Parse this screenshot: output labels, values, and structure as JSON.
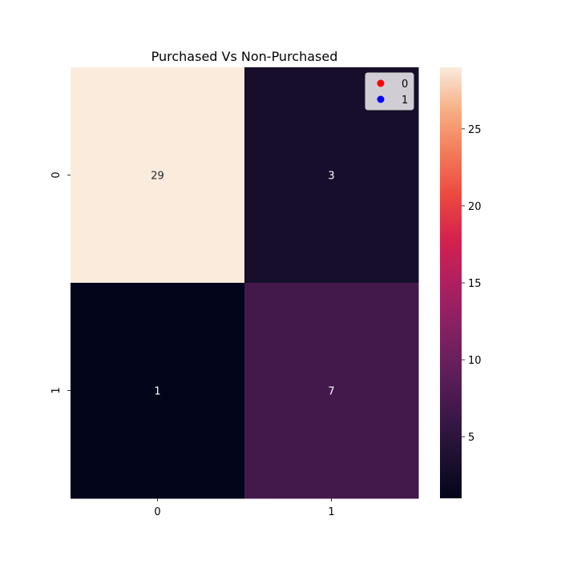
{
  "chart_data": {
    "type": "heatmap",
    "title": "Purchased Vs Non-Purchased",
    "xlabel": "",
    "ylabel": "",
    "x_categories": [
      "0",
      "1"
    ],
    "y_categories": [
      "0",
      "1"
    ],
    "values": [
      [
        29,
        3
      ],
      [
        1,
        7
      ]
    ],
    "annotations": [
      [
        "29",
        "3"
      ],
      [
        "1",
        "7"
      ]
    ],
    "colorbar": {
      "vmin": 1,
      "vmax": 29,
      "ticks": [
        5,
        10,
        15,
        20,
        25
      ],
      "colormap": "rocket"
    },
    "legend": {
      "placement": "top-right",
      "entries": [
        {
          "label": "0",
          "color": "#ff0000"
        },
        {
          "label": "1",
          "color": "#0000ff"
        }
      ]
    },
    "grid": false
  }
}
